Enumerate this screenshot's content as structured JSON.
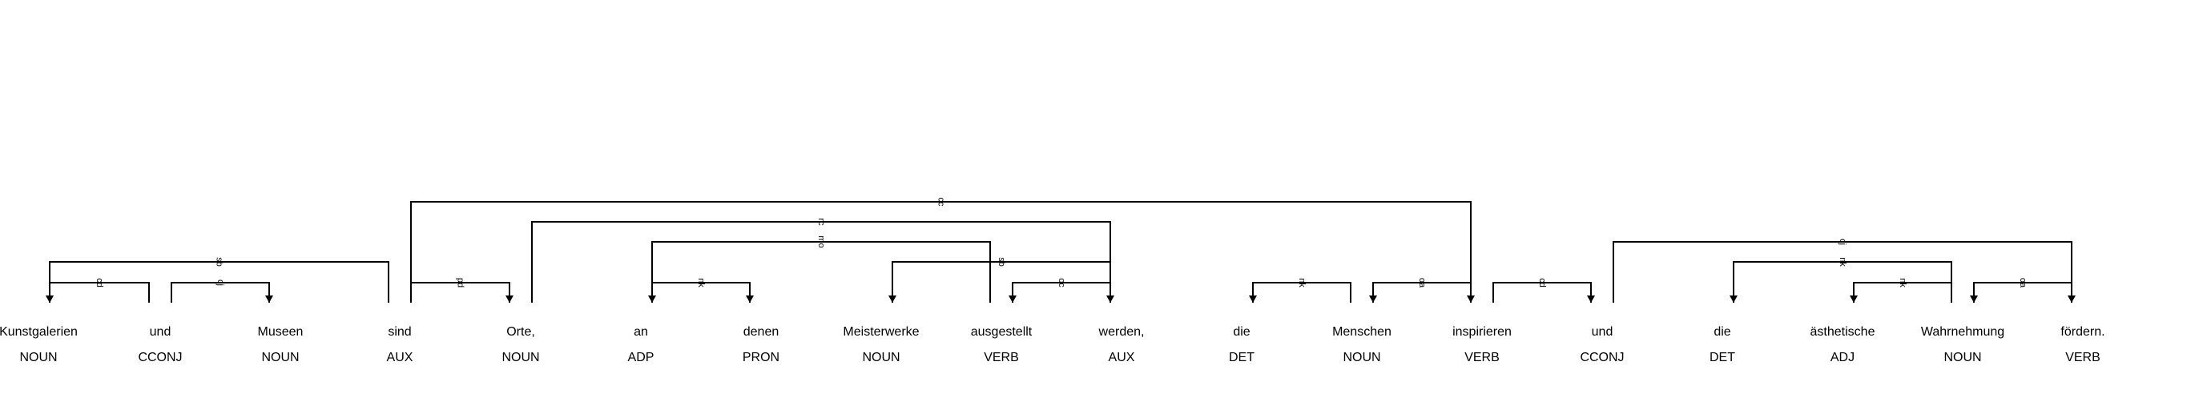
{
  "tokens": [
    {
      "text": "Kunstgalerien",
      "tag": "NOUN"
    },
    {
      "text": "und",
      "tag": "CCONJ"
    },
    {
      "text": "Museen",
      "tag": "NOUN"
    },
    {
      "text": "sind",
      "tag": "AUX"
    },
    {
      "text": "Orte,",
      "tag": "NOUN"
    },
    {
      "text": "an",
      "tag": "ADP"
    },
    {
      "text": "denen",
      "tag": "PRON"
    },
    {
      "text": "Meisterwerke",
      "tag": "NOUN"
    },
    {
      "text": "ausgestellt",
      "tag": "VERB"
    },
    {
      "text": "werden,",
      "tag": "AUX"
    },
    {
      "text": "die",
      "tag": "DET"
    },
    {
      "text": "Menschen",
      "tag": "NOUN"
    },
    {
      "text": "inspirieren",
      "tag": "VERB"
    },
    {
      "text": "und",
      "tag": "CCONJ"
    },
    {
      "text": "die",
      "tag": "DET"
    },
    {
      "text": "ästhetische",
      "tag": "ADJ"
    },
    {
      "text": "Wahrnehmung",
      "tag": "NOUN"
    },
    {
      "text": "fördern.",
      "tag": "VERB"
    }
  ],
  "arcs": [
    {
      "from": 0,
      "to": 1,
      "label": "cd",
      "level": 1,
      "dir": "left"
    },
    {
      "from": 1,
      "to": 2,
      "label": "cj",
      "level": 1,
      "dir": "right"
    },
    {
      "from": 0,
      "to": 3,
      "label": "sb",
      "level": 2,
      "dir": "left"
    },
    {
      "from": 3,
      "to": 4,
      "label": "pd",
      "level": 1,
      "dir": "right"
    },
    {
      "from": 3,
      "to": 12,
      "label": "cc",
      "level": 5,
      "dir": "right"
    },
    {
      "from": 4,
      "to": 9,
      "label": "rc",
      "level": 4,
      "dir": "right"
    },
    {
      "from": 5,
      "to": 6,
      "label": "nk",
      "level": 1,
      "dir": "right"
    },
    {
      "from": 5,
      "to": 8,
      "label": "mo",
      "level": 3,
      "dir": "left"
    },
    {
      "from": 7,
      "to": 9,
      "label": "sb",
      "level": 2,
      "dir": "left"
    },
    {
      "from": 8,
      "to": 9,
      "label": "oc",
      "level": 1,
      "dir": "left"
    },
    {
      "from": 10,
      "to": 11,
      "label": "nk",
      "level": 1,
      "dir": "left"
    },
    {
      "from": 11,
      "to": 12,
      "label": "oa",
      "level": 1,
      "dir": "left"
    },
    {
      "from": 12,
      "to": 13,
      "label": "cd",
      "level": 1,
      "dir": "right"
    },
    {
      "from": 13,
      "to": 17,
      "label": "cj",
      "level": 3,
      "dir": "right"
    },
    {
      "from": 14,
      "to": 16,
      "label": "nk",
      "level": 2,
      "dir": "left"
    },
    {
      "from": 15,
      "to": 16,
      "label": "nk",
      "level": 1,
      "dir": "left"
    },
    {
      "from": 16,
      "to": 17,
      "label": "oa",
      "level": 1,
      "dir": "left"
    }
  ]
}
